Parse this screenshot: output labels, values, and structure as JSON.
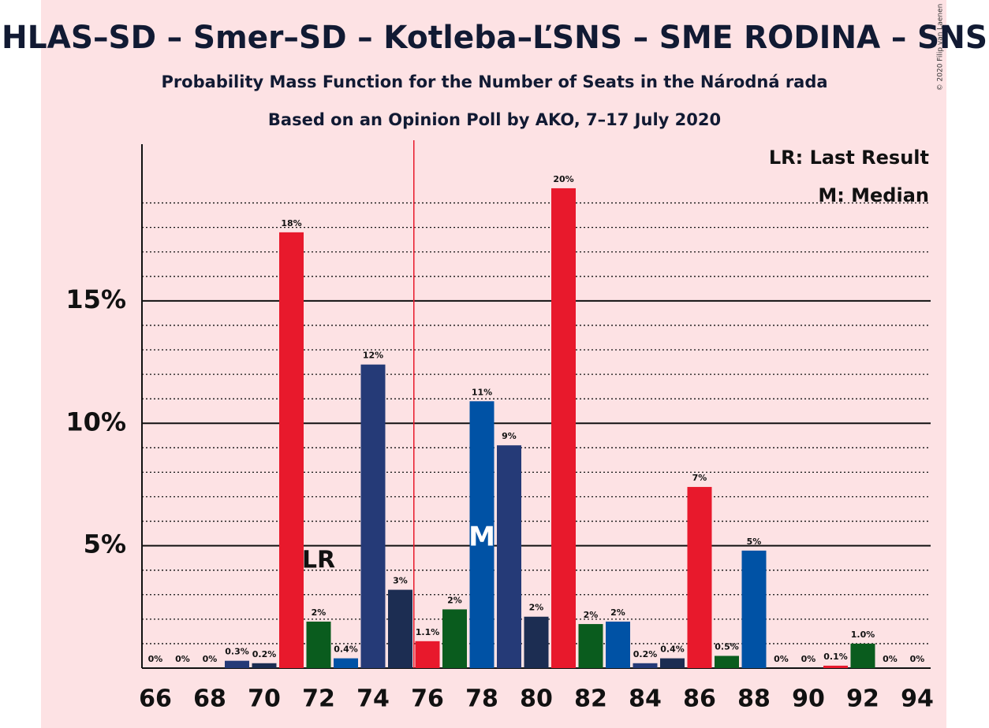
{
  "chart_data": {
    "type": "bar",
    "title": "HLAS–SD – Smer–SD – Kotleba–ĽSNS – SME RODINA – SNS",
    "subtitle": "Probability Mass Function for the Number of Seats in the Národná rada",
    "subtitle2": "Based on an Opinion Poll by AKO, 7–17 July 2020",
    "copyright": "© 2020 Filip van Laenen",
    "categories": [
      66,
      67,
      68,
      69,
      70,
      71,
      72,
      73,
      74,
      75,
      76,
      77,
      78,
      79,
      80,
      81,
      82,
      83,
      84,
      85,
      86,
      87,
      88,
      89,
      90,
      91,
      92,
      93,
      94
    ],
    "values": [
      0,
      0,
      0,
      0.3,
      0.2,
      17.8,
      1.9,
      0.4,
      12.4,
      3.2,
      1.1,
      2.4,
      10.9,
      9.1,
      2.1,
      19.6,
      1.8,
      1.9,
      0.2,
      0.4,
      7.4,
      0.5,
      4.8,
      0,
      0,
      0.1,
      1.0,
      0,
      0
    ],
    "value_labels": [
      "0%",
      "0%",
      "0%",
      "0.3%",
      "0.2%",
      "18%",
      "2%",
      "0.4%",
      "12%",
      "3%",
      "1.1%",
      "2%",
      "11%",
      "9%",
      "2%",
      "20%",
      "2%",
      "2%",
      "0.2%",
      "0.4%",
      "7%",
      "0.5%",
      "5%",
      "0%",
      "0%",
      "0.1%",
      "1.0%",
      "0%",
      "0%"
    ],
    "colors": [
      "#e8192c",
      "#0a5c1e",
      "#0052a5",
      "#253a77",
      "#1c2d52",
      "#e8192c",
      "#0a5c1e",
      "#0052a5",
      "#253a77",
      "#1c2d52",
      "#e8192c",
      "#0a5c1e",
      "#0052a5",
      "#253a77",
      "#1c2d52",
      "#e8192c",
      "#0a5c1e",
      "#0052a5",
      "#253a77",
      "#1c2d52",
      "#e8192c",
      "#0a5c1e",
      "#0052a5",
      "#253a77",
      "#1c2d52",
      "#e8192c",
      "#0a5c1e",
      "#0052a5",
      "#253a77"
    ],
    "xticks": [
      66,
      68,
      70,
      72,
      74,
      76,
      78,
      80,
      82,
      84,
      86,
      88,
      90,
      92,
      94
    ],
    "ylim": [
      0,
      21.4
    ],
    "yticks": [
      {
        "value": 5,
        "label": "5%"
      },
      {
        "value": 10,
        "label": "10%"
      },
      {
        "value": 15,
        "label": "15%"
      }
    ],
    "minor_yticks": [
      1,
      2,
      3,
      4,
      6,
      7,
      8,
      9,
      11,
      12,
      13,
      14,
      16,
      17,
      18,
      19
    ],
    "majority_line": 75.5,
    "last_result": {
      "x": 72,
      "label": "LR"
    },
    "median": {
      "x": 78,
      "label": "M"
    },
    "legend": [
      "LR: Last Result",
      "M: Median"
    ]
  }
}
